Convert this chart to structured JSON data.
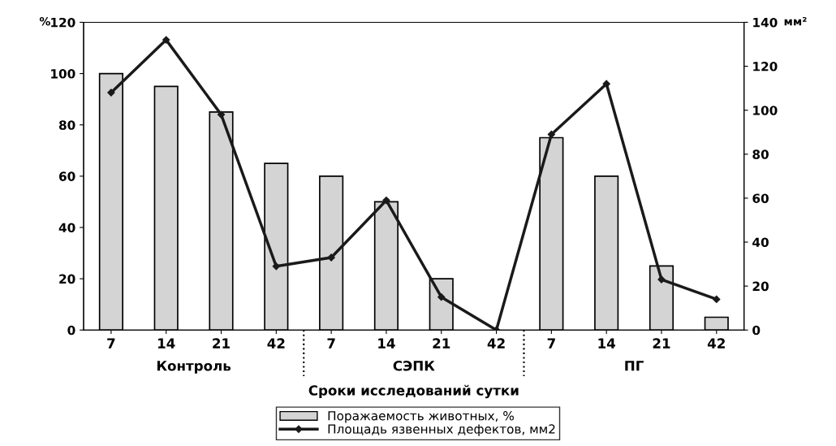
{
  "chart_data": {
    "type": "bar",
    "xlabel": "Сроки исследований сутки",
    "ylabel": "%",
    "y2label": "мм²",
    "categories": [
      "7",
      "14",
      "21",
      "42",
      "7",
      "14",
      "21",
      "42",
      "7",
      "14",
      "21",
      "42"
    ],
    "series": [
      {
        "name": "Поражаемость животных, %",
        "color": "#d4d4d4",
        "values": [
          100,
          95,
          85,
          65,
          60,
          50,
          20,
          0,
          75,
          60,
          25,
          5
        ]
      },
      {
        "name": "Площадь язвенных дефектов, мм2",
        "type": "line",
        "axis": "y2",
        "color": "#1a1a1a",
        "marker": "diamond",
        "values": [
          108,
          132,
          98,
          29,
          33,
          59,
          15,
          0,
          89,
          112,
          23,
          14
        ]
      }
    ],
    "annotations": [
      "Контроль",
      "СЭПК",
      "ПГ"
    ],
    "ylim": [
      0,
      120
    ],
    "yticks": [
      0,
      20,
      40,
      60,
      80,
      100,
      120
    ],
    "y2lim": [
      0,
      140
    ],
    "y2ticks": [
      0,
      20,
      40,
      60,
      80,
      100,
      120,
      140
    ],
    "grid": false,
    "legend": "bottom"
  }
}
